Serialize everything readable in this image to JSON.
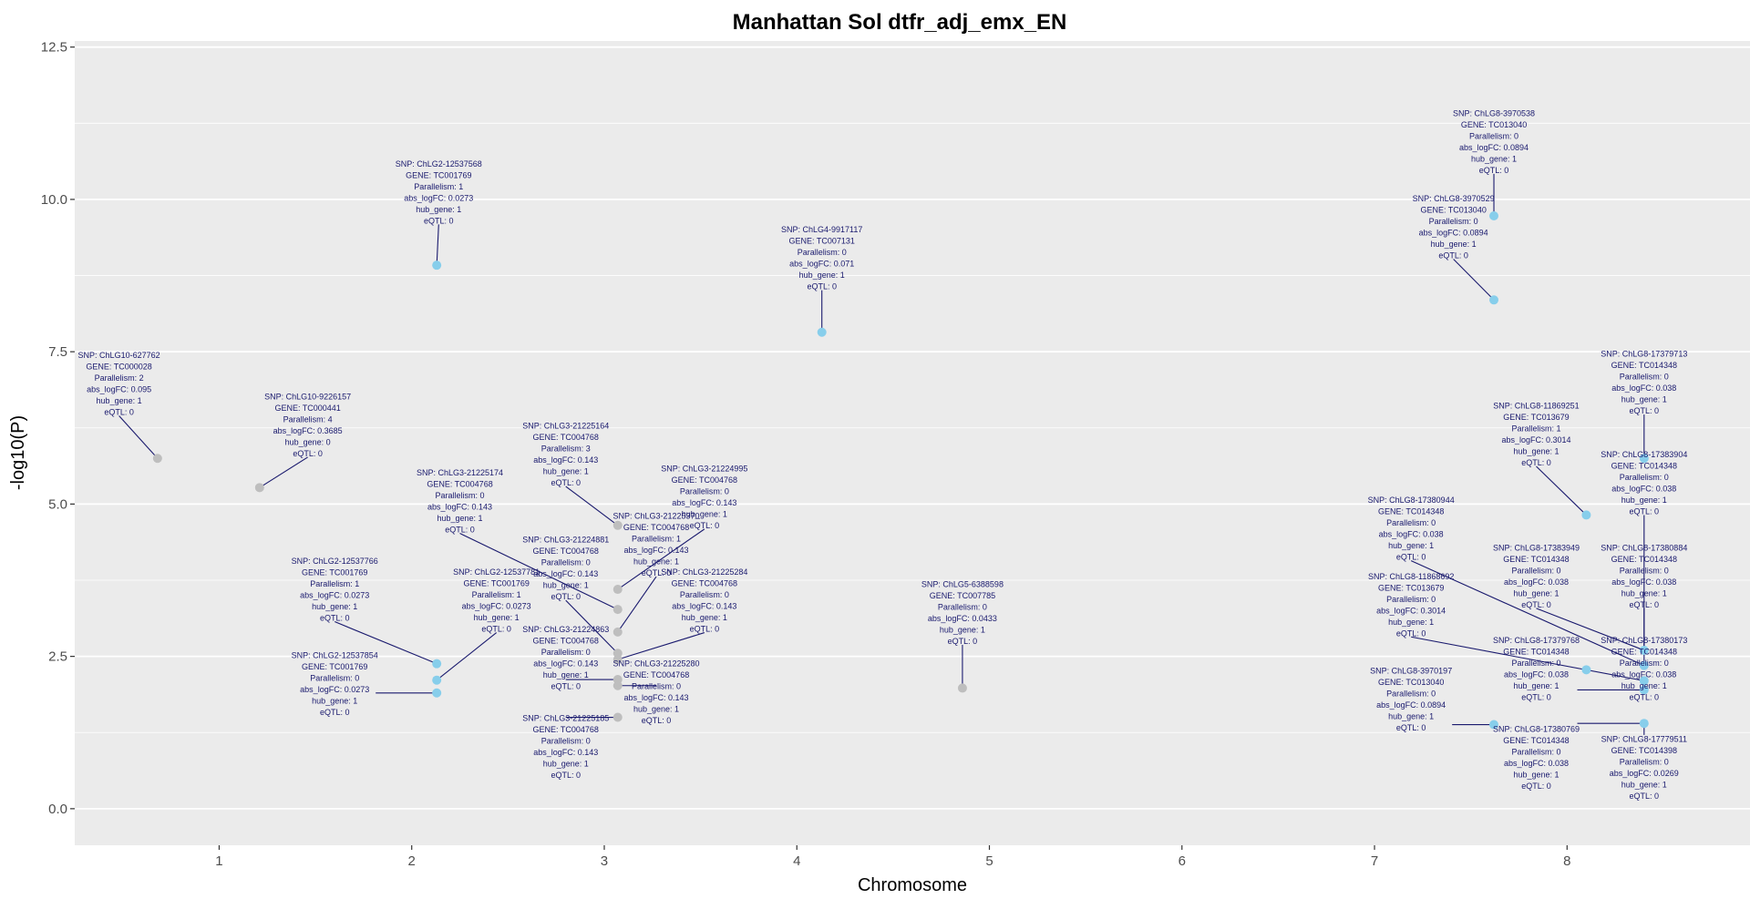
{
  "chart_data": {
    "type": "scatter",
    "title": "Manhattan Sol dtfr_adj_emx_EN",
    "xlabel": "Chromosome",
    "ylabel": "-log10(P)",
    "xlim": [
      0.25,
      8.95
    ],
    "ylim": [
      -0.6,
      12.6
    ],
    "x_ticks": [
      {
        "v": 1,
        "label": "1"
      },
      {
        "v": 2,
        "label": "2"
      },
      {
        "v": 3,
        "label": "3"
      },
      {
        "v": 4,
        "label": "4"
      },
      {
        "v": 5,
        "label": "5"
      },
      {
        "v": 6,
        "label": "6"
      },
      {
        "v": 7,
        "label": "7"
      },
      {
        "v": 8,
        "label": "8"
      }
    ],
    "y_ticks": [
      {
        "v": 0,
        "label": "0.0"
      },
      {
        "v": 2.5,
        "label": "2.5"
      },
      {
        "v": 5,
        "label": "5.0"
      },
      {
        "v": 7.5,
        "label": "7.5"
      },
      {
        "v": 10,
        "label": "10.0"
      },
      {
        "v": 12.5,
        "label": "12.5"
      }
    ],
    "grid": true,
    "colors": {
      "panel": "#ebebeb",
      "grid": "#ffffff",
      "hub": "#87ceeb",
      "nonhub": "#bebebe",
      "annotation": "#1a1a6e"
    },
    "points": [
      {
        "x": 0.68,
        "y": 5.75,
        "hub": false
      },
      {
        "x": 1.21,
        "y": 5.27,
        "hub": false
      },
      {
        "x": 2.13,
        "y": 8.92,
        "hub": true
      },
      {
        "x": 2.13,
        "y": 2.38,
        "hub": true
      },
      {
        "x": 2.13,
        "y": 2.11,
        "hub": true
      },
      {
        "x": 2.13,
        "y": 1.9,
        "hub": true
      },
      {
        "x": 3.07,
        "y": 4.65,
        "hub": false
      },
      {
        "x": 3.07,
        "y": 3.6,
        "hub": false
      },
      {
        "x": 3.07,
        "y": 3.27,
        "hub": false
      },
      {
        "x": 3.07,
        "y": 2.9,
        "hub": false
      },
      {
        "x": 3.07,
        "y": 2.55,
        "hub": false
      },
      {
        "x": 3.07,
        "y": 2.45,
        "hub": false
      },
      {
        "x": 3.07,
        "y": 2.12,
        "hub": false
      },
      {
        "x": 3.07,
        "y": 2.02,
        "hub": false
      },
      {
        "x": 3.07,
        "y": 1.5,
        "hub": false
      },
      {
        "x": 4.13,
        "y": 7.82,
        "hub": true
      },
      {
        "x": 4.86,
        "y": 1.98,
        "hub": false
      },
      {
        "x": 7.62,
        "y": 9.73,
        "hub": true
      },
      {
        "x": 7.62,
        "y": 8.35,
        "hub": true
      },
      {
        "x": 7.62,
        "y": 1.38,
        "hub": true
      },
      {
        "x": 8.1,
        "y": 4.82,
        "hub": true
      },
      {
        "x": 8.1,
        "y": 2.28,
        "hub": true
      },
      {
        "x": 8.4,
        "y": 5.75,
        "hub": true
      },
      {
        "x": 8.4,
        "y": 2.6,
        "hub": true
      },
      {
        "x": 8.4,
        "y": 2.35,
        "hub": true
      },
      {
        "x": 8.4,
        "y": 2.1,
        "hub": true
      },
      {
        "x": 8.4,
        "y": 1.95,
        "hub": true
      },
      {
        "x": 8.4,
        "y": 1.4,
        "hub": true
      }
    ],
    "annotations": [
      {
        "px": 0.68,
        "py": 5.75,
        "lx": 0.48,
        "ly": 6.98,
        "lines": [
          "SNP:  ChLG10-627762",
          "GENE:  TC000028",
          "Parallelism:  2",
          "abs_logFC:  0.095",
          "hub_gene:  1",
          "eQTL:  0"
        ]
      },
      {
        "px": 1.21,
        "py": 5.27,
        "lx": 1.46,
        "ly": 6.3,
        "lines": [
          "SNP:  ChLG10-9226157",
          "GENE:  TC000441",
          "Parallelism:  4",
          "abs_logFC:  0.3685",
          "hub_gene:  0",
          "eQTL:  0"
        ]
      },
      {
        "px": 2.13,
        "py": 8.92,
        "lx": 2.14,
        "ly": 10.12,
        "lines": [
          "SNP:  ChLG2-12537568",
          "GENE:  TC001769",
          "Parallelism:  1",
          "abs_logFC:  0.0273",
          "hub_gene:  1",
          "eQTL:  0"
        ]
      },
      {
        "px": 2.13,
        "py": 2.38,
        "lx": 1.6,
        "ly": 3.6,
        "lines": [
          "SNP:  ChLG2-12537766",
          "GENE:  TC001769",
          "Parallelism:  1",
          "abs_logFC:  0.0273",
          "hub_gene:  1",
          "eQTL:  0"
        ]
      },
      {
        "px": 2.13,
        "py": 2.11,
        "lx": 2.44,
        "ly": 3.42,
        "lines": [
          "SNP:  ChLG2-12537781",
          "GENE:  TC001769",
          "Parallelism:  1",
          "abs_logFC:  0.0273",
          "hub_gene:  1",
          "eQTL:  0"
        ]
      },
      {
        "px": 2.13,
        "py": 1.9,
        "lx": 1.6,
        "ly": 2.05,
        "lines": [
          "SNP:  ChLG2-12537854",
          "GENE:  TC001769",
          "Parallelism:  0",
          "abs_logFC:  0.0273",
          "hub_gene:  1",
          "eQTL:  0"
        ]
      },
      {
        "px": 3.07,
        "py": 4.65,
        "lx": 2.8,
        "ly": 5.82,
        "lines": [
          "SNP:  ChLG3-21225164",
          "GENE:  TC004768",
          "Parallelism:  3",
          "abs_logFC:  0.143",
          "hub_gene:  1",
          "eQTL:  0"
        ]
      },
      {
        "px": 3.07,
        "py": 3.27,
        "lx": 2.25,
        "ly": 5.05,
        "lines": [
          "SNP:  ChLG3-21225174",
          "GENE:  TC004768",
          "Parallelism:  0",
          "abs_logFC:  0.143",
          "hub_gene:  1",
          "eQTL:  0"
        ]
      },
      {
        "px": 3.07,
        "py": 3.6,
        "lx": 3.52,
        "ly": 5.12,
        "lines": [
          "SNP:  ChLG3-21224995",
          "GENE:  TC004768",
          "Parallelism:  0",
          "abs_logFC:  0.143",
          "hub_gene:  1",
          "eQTL:  0"
        ]
      },
      {
        "px": 3.07,
        "py": 2.9,
        "lx": 3.27,
        "ly": 4.34,
        "lines": [
          "SNP:  ChLG3-21225370",
          "GENE:  TC004768",
          "Parallelism:  1",
          "abs_logFC:  0.143",
          "hub_gene:  1",
          "eQTL:  0"
        ]
      },
      {
        "px": 3.07,
        "py": 2.55,
        "lx": 2.8,
        "ly": 3.95,
        "lines": [
          "SNP:  ChLG3-21224881",
          "GENE:  TC004768",
          "Parallelism:  0",
          "abs_logFC:  0.143",
          "hub_gene:  1",
          "eQTL:  0"
        ]
      },
      {
        "px": 3.07,
        "py": 2.45,
        "lx": 3.52,
        "ly": 3.42,
        "lines": [
          "SNP:  ChLG3-21225284",
          "GENE:  TC004768",
          "Parallelism:  0",
          "abs_logFC:  0.143",
          "hub_gene:  1",
          "eQTL:  0"
        ]
      },
      {
        "px": 3.07,
        "py": 2.12,
        "lx": 2.8,
        "ly": 2.48,
        "lines": [
          "SNP:  ChLG3-21224863",
          "GENE:  TC004768",
          "Parallelism:  0",
          "abs_logFC:  0.143",
          "hub_gene:  1",
          "eQTL:  0"
        ]
      },
      {
        "px": 3.07,
        "py": 2.02,
        "lx": 3.27,
        "ly": 1.92,
        "lines": [
          "SNP:  ChLG3-21225280",
          "GENE:  TC004768",
          "Parallelism:  0",
          "abs_logFC:  0.143",
          "hub_gene:  1",
          "eQTL:  0"
        ]
      },
      {
        "px": 3.07,
        "py": 1.5,
        "lx": 2.8,
        "ly": 1.02,
        "lines": [
          "SNP:  ChLG3-21225185",
          "GENE:  TC004768",
          "Parallelism:  0",
          "abs_logFC:  0.143",
          "hub_gene:  1",
          "eQTL:  0"
        ]
      },
      {
        "px": 4.13,
        "py": 7.82,
        "lx": 4.13,
        "ly": 9.04,
        "lines": [
          "SNP:  ChLG4-9917117",
          "GENE:  TC007131",
          "Parallelism:  0",
          "abs_logFC:  0.071",
          "hub_gene:  1",
          "eQTL:  0"
        ]
      },
      {
        "px": 4.86,
        "py": 1.98,
        "lx": 4.86,
        "ly": 3.22,
        "lines": [
          "SNP:  ChLG5-6388598",
          "GENE:  TC007785",
          "Parallelism:  0",
          "abs_logFC:  0.0433",
          "hub_gene:  1",
          "eQTL:  0"
        ]
      },
      {
        "px": 7.62,
        "py": 9.73,
        "lx": 7.62,
        "ly": 10.95,
        "lines": [
          "SNP:  ChLG8-3970538",
          "GENE:  TC013040",
          "Parallelism:  0",
          "abs_logFC:  0.0894",
          "hub_gene:  1",
          "eQTL:  0"
        ]
      },
      {
        "px": 7.62,
        "py": 8.35,
        "lx": 7.41,
        "ly": 9.55,
        "lines": [
          "SNP:  ChLG8-3970529",
          "GENE:  TC013040",
          "Parallelism:  0",
          "abs_logFC:  0.0894",
          "hub_gene:  1",
          "eQTL:  0"
        ]
      },
      {
        "px": 7.62,
        "py": 1.38,
        "lx": 7.19,
        "ly": 1.8,
        "lines": [
          "SNP:  ChLG8-3970197",
          "GENE:  TC013040",
          "Parallelism:  0",
          "abs_logFC:  0.0894",
          "hub_gene:  1",
          "eQTL:  0"
        ]
      },
      {
        "px": 8.1,
        "py": 4.82,
        "lx": 7.84,
        "ly": 6.15,
        "lines": [
          "SNP:  ChLG8-11869251",
          "GENE:  TC013679",
          "Parallelism:  1",
          "abs_logFC:  0.3014",
          "hub_gene:  1",
          "eQTL:  0"
        ]
      },
      {
        "px": 8.4,
        "py": 2.35,
        "lx": 7.19,
        "ly": 4.6,
        "lines": [
          "SNP:  ChLG8-17380944",
          "GENE:  TC014348",
          "Parallelism:  0",
          "abs_logFC:  0.038",
          "hub_gene:  1",
          "eQTL:  0"
        ]
      },
      {
        "px": 8.4,
        "py": 2.1,
        "lx": 7.19,
        "ly": 3.35,
        "lines": [
          "SNP:  ChLG8-11868692",
          "GENE:  TC013679",
          "Parallelism:  0",
          "abs_logFC:  0.3014",
          "hub_gene:  1",
          "eQTL:  0"
        ]
      },
      {
        "px": 8.4,
        "py": 2.6,
        "lx": 7.84,
        "ly": 3.82,
        "lines": [
          "SNP:  ChLG8-17383949",
          "GENE:  TC014348",
          "Parallelism:  0",
          "abs_logFC:  0.038",
          "hub_gene:  1",
          "eQTL:  0"
        ]
      },
      {
        "px": 8.4,
        "py": 1.95,
        "lx": 7.84,
        "ly": 2.3,
        "lines": [
          "SNP:  ChLG8-17379768",
          "GENE:  TC014348",
          "Parallelism:  0",
          "abs_logFC:  0.038",
          "hub_gene:  1",
          "eQTL:  0"
        ]
      },
      {
        "px": 8.4,
        "py": 1.4,
        "lx": 7.84,
        "ly": 0.84,
        "lines": [
          "SNP:  ChLG8-17380769",
          "GENE:  TC014348",
          "Parallelism:  0",
          "abs_logFC:  0.038",
          "hub_gene:  1",
          "eQTL:  0"
        ]
      },
      {
        "px": 8.4,
        "py": 5.75,
        "lx": 8.4,
        "ly": 7.0,
        "lines": [
          "SNP:  ChLG8-17379713",
          "GENE:  TC014348",
          "Parallelism:  0",
          "abs_logFC:  0.038",
          "hub_gene:  1",
          "eQTL:  0"
        ]
      },
      {
        "px": 8.4,
        "py": 2.6,
        "lx": 8.4,
        "ly": 5.35,
        "lines": [
          "SNP:  ChLG8-17383904",
          "GENE:  TC014348",
          "Parallelism:  0",
          "abs_logFC:  0.038",
          "hub_gene:  1",
          "eQTL:  0"
        ]
      },
      {
        "px": 8.4,
        "py": 2.35,
        "lx": 8.4,
        "ly": 3.82,
        "lines": [
          "SNP:  ChLG8-17380884",
          "GENE:  TC014348",
          "Parallelism:  0",
          "abs_logFC:  0.038",
          "hub_gene:  1",
          "eQTL:  0"
        ]
      },
      {
        "px": 8.4,
        "py": 2.1,
        "lx": 8.4,
        "ly": 2.3,
        "lines": [
          "SNP:  ChLG8-17380173",
          "GENE:  TC014348",
          "Parallelism:  0",
          "abs_logFC:  0.038",
          "hub_gene:  1",
          "eQTL:  0"
        ]
      },
      {
        "px": 8.4,
        "py": 1.4,
        "lx": 8.4,
        "ly": 0.68,
        "lines": [
          "SNP:  ChLG8-17779511",
          "GENE:  TC014398",
          "Parallelism:  0",
          "abs_logFC:  0.0269",
          "hub_gene:  1",
          "eQTL:  0"
        ]
      }
    ]
  }
}
